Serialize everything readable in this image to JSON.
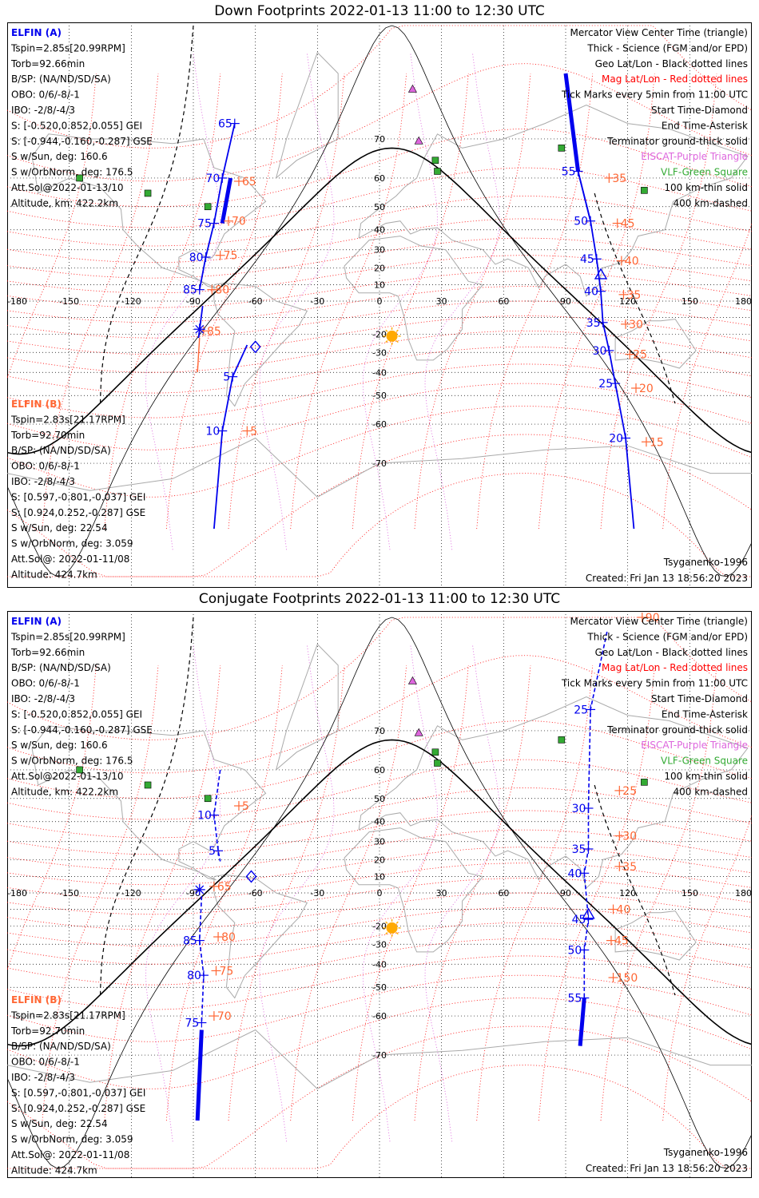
{
  "panels": [
    {
      "title": "Down Footprints 2022-01-13 11:00 to 12:30 UTC",
      "sat_a": {
        "name": "ELFIN (A)",
        "lines": [
          "Tspin=2.85s[20.99RPM]",
          "Torb=92.66min",
          "B/SP: (NA/ND/SD/SA)",
          "OBO: 0/6/-8/-1",
          "IBO: -2/8/-4/3",
          "S: [-0.520,0.852,0.055] GEI",
          "S: [-0.944,-0.160,-0.287] GSE",
          "S w/Sun, deg: 160.6",
          "S w/OrbNorm, deg: 176.5",
          "Att.Sol@2022-01-13/10",
          "Altitude, km: 422.2km"
        ]
      },
      "sat_b": {
        "name": "ELFIN (B)",
        "lines": [
          "Tspin=2.83s[21.17RPM]",
          "Torb=92.70min",
          "B/SP: (NA/ND/SD/SA)",
          "OBO: 0/6/-8/-1",
          "IBO: -2/8/-4/3",
          "S: [0.597,-0.801,-0.037] GEI",
          "S: [0.924,0.252,-0.287] GSE",
          "S w/Sun, deg: 22.54",
          "S w/OrbNorm, deg: 3.059",
          "Att.Sol@: 2022-01-11/08",
          "Altitude: 424.7km"
        ]
      },
      "a_ticks": [
        {
          "label": "65",
          "lon": -70,
          "lat": 73
        },
        {
          "label": "70",
          "lon": -76,
          "lat": 60
        },
        {
          "label": "75",
          "lon": -80,
          "lat": 43
        },
        {
          "label": "80",
          "lon": -84,
          "lat": 26
        },
        {
          "label": "85",
          "lon": -87,
          "lat": 7
        },
        {
          "label": "55",
          "lon": 96,
          "lat": 62
        },
        {
          "label": "50",
          "lon": 102,
          "lat": 44
        },
        {
          "label": "45",
          "lon": 105,
          "lat": 25
        },
        {
          "label": "40",
          "lon": 107,
          "lat": 6
        },
        {
          "label": "35",
          "lon": 108,
          "lat": -13
        },
        {
          "label": "30",
          "lon": 111,
          "lat": -29
        },
        {
          "label": "25",
          "lon": 114,
          "lat": -45
        },
        {
          "label": "20",
          "lon": 119,
          "lat": -64
        },
        {
          "label": "5",
          "lon": -71,
          "lat": -42
        },
        {
          "label": "10",
          "lon": -76,
          "lat": -62
        }
      ],
      "b_ticks": [
        {
          "label": "65",
          "lon": -68,
          "lat": 59
        },
        {
          "label": "70",
          "lon": -73,
          "lat": 44
        },
        {
          "label": "75",
          "lon": -77,
          "lat": 27
        },
        {
          "label": "80",
          "lon": -81,
          "lat": 7
        },
        {
          "label": "85",
          "lon": -85,
          "lat": -18
        },
        {
          "label": "35",
          "lon": 111,
          "lat": 60
        },
        {
          "label": "45",
          "lon": 115,
          "lat": 43
        },
        {
          "label": "40",
          "lon": 117,
          "lat": 24
        },
        {
          "label": "35",
          "lon": 118,
          "lat": 4
        },
        {
          "label": "30",
          "lon": 119,
          "lat": -14
        },
        {
          "label": "25",
          "lon": 121,
          "lat": -31
        },
        {
          "label": "20",
          "lon": 124,
          "lat": -47
        },
        {
          "label": "15",
          "lon": 129,
          "lat": -65
        },
        {
          "label": "5",
          "lon": -64,
          "lat": -62
        }
      ],
      "lat_labels_left": [
        "70",
        "60",
        "50",
        "40",
        "30",
        "20",
        "10"
      ],
      "credit": "Tsyganenko-1996",
      "created": "Created: Fri Jan 13 18:56:20 2023"
    },
    {
      "title": "Conjugate Footprints 2022-01-13 11:00 to 12:30 UTC",
      "sat_a": {
        "name": "ELFIN (A)",
        "lines": [
          "Tspin=2.85s[20.99RPM]",
          "Torb=92.66min",
          "B/SP: (NA/ND/SD/SA)",
          "OBO: 0/6/-8/-1",
          "IBO: -2/8/-4/3",
          "S: [-0.520,0.852,0.055] GEI",
          "S: [-0.944,-0.160,-0.287] GSE",
          "S w/Sun, deg: 160.6",
          "S w/OrbNorm, deg: 176.5",
          "Att.Sol@2022-01-13/10",
          "Altitude, km: 422.2km"
        ]
      },
      "sat_b": {
        "name": "ELFIN (B)",
        "lines": [
          "Tspin=2.83s[21.17RPM]",
          "Torb=92.70min",
          "B/SP: (NA/ND/SD/SA)",
          "OBO: 0/6/-8/-1",
          "IBO: -2/8/-4/3",
          "S: [0.597,-0.801,-0.037] GEI",
          "S: [0.924,0.252,-0.287] GSE",
          "S w/Sun, deg: 22.54",
          "S w/OrbNorm, deg: 3.059",
          "Att.Sol@: 2022-01-11/08",
          "Altitude: 424.7km"
        ]
      },
      "a_ticks": [
        {
          "label": "10",
          "lon": -80,
          "lat": 43
        },
        {
          "label": "5",
          "lon": -78,
          "lat": 25
        },
        {
          "label": "85",
          "lon": -87,
          "lat": -28
        },
        {
          "label": "80",
          "lon": -85,
          "lat": -45
        },
        {
          "label": "75",
          "lon": -86,
          "lat": -62
        },
        {
          "label": "25",
          "lon": 102,
          "lat": 74
        },
        {
          "label": "30",
          "lon": 101,
          "lat": 46
        },
        {
          "label": "35",
          "lon": 101,
          "lat": 26
        },
        {
          "label": "40",
          "lon": 99,
          "lat": 12
        },
        {
          "label": "45",
          "lon": 101,
          "lat": -16
        },
        {
          "label": "50",
          "lon": 99,
          "lat": -33
        },
        {
          "label": "55",
          "lon": 99,
          "lat": -54
        }
      ],
      "b_ticks": [
        {
          "label": "5",
          "lon": -68,
          "lat": 47
        },
        {
          "label": "65",
          "lon": -80,
          "lat": 4
        },
        {
          "label": "80",
          "lon": -78,
          "lat": -26
        },
        {
          "label": "75",
          "lon": -79,
          "lat": -43
        },
        {
          "label": "70",
          "lon": -80,
          "lat": -60
        },
        {
          "label": "90",
          "lon": 127,
          "lat": 85
        },
        {
          "label": "25",
          "lon": 116,
          "lat": 53
        },
        {
          "label": "30",
          "lon": 116,
          "lat": 33
        },
        {
          "label": "35",
          "lon": 116,
          "lat": 16
        },
        {
          "label": "40",
          "lon": 113,
          "lat": -10
        },
        {
          "label": "45",
          "lon": 112,
          "lat": -28
        },
        {
          "label": "150",
          "lon": 113,
          "lat": -46
        }
      ],
      "lat_labels_left": [],
      "credit": "Tsyganenko-1996",
      "created": "Created: Fri Jan 13 18:56:20 2023"
    }
  ],
  "legend": [
    {
      "text": "Mercator View Center Time (triangle)",
      "color": "#000000"
    },
    {
      "text": "Thick - Science (FGM and/or EPD)",
      "color": "#000000"
    },
    {
      "text": "Geo Lat/Lon - Black dotted lines",
      "color": "#000000"
    },
    {
      "text": "Mag Lat/Lon - Red dotted lines",
      "color": "#ff0000"
    },
    {
      "text": "Tick Marks every 5min from 11:00 UTC",
      "color": "#000000"
    },
    {
      "text": "Start Time-Diamond",
      "color": "#000000"
    },
    {
      "text": "End Time-Asterisk",
      "color": "#000000"
    },
    {
      "text": "Terminator ground-thick solid",
      "color": "#000000"
    },
    {
      "text": "EISCAT-Purple Triangle",
      "color": "#dd66dd"
    },
    {
      "text": "VLF-Green Square",
      "color": "#33aa33"
    },
    {
      "text": "100 km-thin solid",
      "color": "#000000"
    },
    {
      "text": "400 km-dashed",
      "color": "#000000"
    }
  ],
  "lon_labels": [
    "-180",
    "-150",
    "-120",
    "-90",
    "-60",
    "-30",
    "0",
    "30",
    "60",
    "90",
    "120",
    "150",
    "180"
  ],
  "lat_labels": [
    "70",
    "60",
    "50",
    "40",
    "30",
    "20",
    "10",
    "-20",
    "-30",
    "-40",
    "-50",
    "-60",
    "-70"
  ],
  "colors": {
    "sat_a": "#0000ee",
    "sat_b": "#ff6633",
    "mag_grid": "#ff0000",
    "geo_grid": "#000000",
    "eiscat": "#dd66dd",
    "vlf": "#33aa33",
    "sun": "#ffaa00"
  },
  "subsolar_point": {
    "lon": 6,
    "lat": -21
  },
  "eiscat_sites": [
    {
      "lon": 19,
      "lat": 69.6
    },
    {
      "lon": 16,
      "lat": 78.2
    }
  ],
  "vlf_sites": [
    {
      "lon": 27,
      "lat": 65
    },
    {
      "lon": 28,
      "lat": 62
    },
    {
      "lon": 88,
      "lat": 68
    },
    {
      "lon": 128,
      "lat": 56
    },
    {
      "lon": -145,
      "lat": 60
    },
    {
      "lon": -112,
      "lat": 55
    },
    {
      "lon": -83,
      "lat": 50
    }
  ]
}
